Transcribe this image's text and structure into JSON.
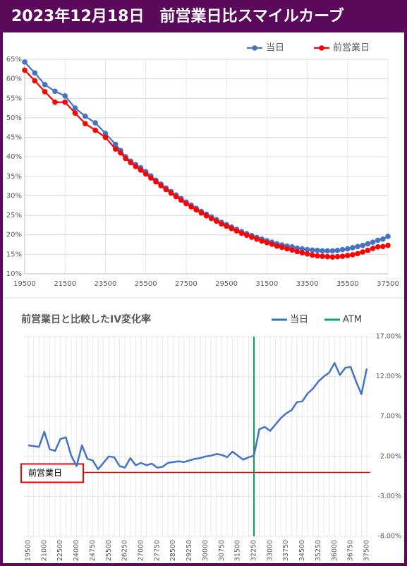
{
  "header": {
    "title": "2023年12月18日　前営業日比スマイルカーブ"
  },
  "chart_data": [
    {
      "type": "line",
      "x": [
        19500,
        20000,
        20500,
        21000,
        21500,
        22000,
        22500,
        23000,
        23500,
        24000,
        24250,
        24500,
        24750,
        25000,
        25250,
        25500,
        25750,
        26000,
        26250,
        26500,
        26750,
        27000,
        27250,
        27500,
        27750,
        28000,
        28250,
        28500,
        28750,
        29000,
        29250,
        29500,
        29750,
        30000,
        30250,
        30500,
        30750,
        31000,
        31250,
        31500,
        31750,
        32000,
        32250,
        32500,
        32750,
        33000,
        33250,
        33500,
        33750,
        34000,
        34250,
        34500,
        34750,
        35000,
        35250,
        35500,
        35750,
        36000,
        36250,
        36500,
        36750,
        37000,
        37250,
        37500
      ],
      "xlim": [
        19500,
        37500
      ],
      "xticks": [
        19500,
        21500,
        23500,
        25500,
        27500,
        29500,
        31500,
        33500,
        35500,
        37500
      ],
      "ylim": [
        10,
        65
      ],
      "yticks": [
        {
          "value": 10,
          "label": "10%"
        },
        {
          "value": 15,
          "label": "15%"
        },
        {
          "value": 20,
          "label": "20%"
        },
        {
          "value": 25,
          "label": "25%"
        },
        {
          "value": 30,
          "label": "30%"
        },
        {
          "value": 35,
          "label": "35%"
        },
        {
          "value": 40,
          "label": "40%"
        },
        {
          "value": 45,
          "label": "45%"
        },
        {
          "value": 50,
          "label": "50%"
        },
        {
          "value": 55,
          "label": "55%"
        },
        {
          "value": 60,
          "label": "60%"
        },
        {
          "value": 65,
          "label": "65%"
        }
      ],
      "grid": true,
      "legend": "top-right",
      "series": [
        {
          "name": "当日",
          "color": "#4472c4",
          "values": [
            64.3,
            61.5,
            58.5,
            56.8,
            55.6,
            52.5,
            50.4,
            48.7,
            46.0,
            43.2,
            41.6,
            40.0,
            38.9,
            38.0,
            37.2,
            36.2,
            35.1,
            34.0,
            33.0,
            32.0,
            31.1,
            30.2,
            29.3,
            28.4,
            27.6,
            26.8,
            26.0,
            25.3,
            24.6,
            23.9,
            23.2,
            22.6,
            22.0,
            21.4,
            20.8,
            20.3,
            19.8,
            19.3,
            18.9,
            18.5,
            18.1,
            17.7,
            17.4,
            17.1,
            16.9,
            16.6,
            16.4,
            16.2,
            16.1,
            16.0,
            15.9,
            15.9,
            15.9,
            16.0,
            16.2,
            16.4,
            16.7,
            17.0,
            17.3,
            17.7,
            18.1,
            18.6,
            18.9,
            19.6
          ]
        },
        {
          "name": "前営業日",
          "color": "#ff0000",
          "values": [
            62.2,
            59.5,
            56.7,
            54.0,
            54.0,
            51.2,
            48.5,
            46.8,
            45.0,
            42.0,
            41.0,
            39.6,
            38.5,
            37.5,
            36.6,
            35.6,
            34.6,
            33.6,
            32.6,
            31.6,
            30.7,
            29.8,
            28.9,
            28.0,
            27.2,
            26.4,
            25.6,
            24.9,
            24.2,
            23.5,
            22.8,
            22.2,
            21.6,
            21.0,
            20.4,
            19.9,
            19.4,
            18.9,
            18.4,
            18.0,
            17.6,
            17.1,
            16.8,
            16.4,
            16.1,
            15.7,
            15.4,
            15.1,
            14.8,
            14.6,
            14.5,
            14.4,
            14.3,
            14.4,
            14.5,
            14.7,
            14.9,
            15.2,
            15.6,
            16.0,
            16.5,
            16.9,
            17.0,
            17.3
          ]
        }
      ]
    },
    {
      "type": "line",
      "title": "前営業日と比較したIV変化率",
      "categories": [
        "19500",
        null,
        null,
        "21000",
        null,
        null,
        "22500",
        null,
        null,
        "24000",
        null,
        null,
        "24750",
        null,
        null,
        "25500",
        null,
        null,
        "26250",
        null,
        null,
        "27000",
        null,
        null,
        "27750",
        null,
        null,
        "28500",
        null,
        null,
        "29250",
        null,
        null,
        "30000",
        null,
        null,
        "30750",
        null,
        null,
        "31500",
        null,
        null,
        "32250",
        null,
        null,
        "33000",
        null,
        null,
        "33750",
        null,
        null,
        "34500",
        null,
        null,
        "35250",
        null,
        null,
        "36000",
        null,
        null,
        "36750",
        null,
        null,
        "37500"
      ],
      "ylim": [
        -8,
        17
      ],
      "yticks": [
        {
          "value": -8,
          "label": "-8.00%"
        },
        {
          "value": -3,
          "label": "-3.00%"
        },
        {
          "value": 2,
          "label": "2.00%"
        },
        {
          "value": 7,
          "label": "7.00%"
        },
        {
          "value": 12,
          "label": "12.00%"
        },
        {
          "value": 17,
          "label": "17.00%"
        }
      ],
      "grid": true,
      "legend": "top-right",
      "series": [
        {
          "name": "当日",
          "color": "#4472c4",
          "values": [
            3.4,
            3.3,
            3.2,
            5.1,
            2.9,
            2.7,
            4.2,
            4.4,
            2.1,
            0.8,
            3.4,
            1.7,
            1.5,
            0.4,
            1.2,
            2.0,
            1.9,
            0.8,
            0.6,
            1.8,
            0.9,
            1.2,
            0.9,
            1.1,
            0.6,
            0.7,
            1.2,
            1.3,
            1.4,
            1.3,
            1.5,
            1.7,
            1.8,
            2.0,
            2.1,
            2.3,
            2.2,
            1.9,
            2.6,
            2.1,
            1.6,
            1.9,
            2.1,
            5.4,
            5.7,
            5.2,
            6.0,
            6.8,
            7.4,
            7.8,
            8.8,
            8.9,
            9.9,
            10.5,
            11.4,
            12.0,
            12.5,
            13.7,
            12.2,
            13.1,
            13.2,
            11.4,
            9.8,
            13.0
          ]
        }
      ],
      "atm": {
        "name": "ATM",
        "color": "#00b050",
        "x": 32250
      },
      "baseline": {
        "label": "前営業日",
        "color": "#ff0000",
        "value": 0
      }
    }
  ]
}
